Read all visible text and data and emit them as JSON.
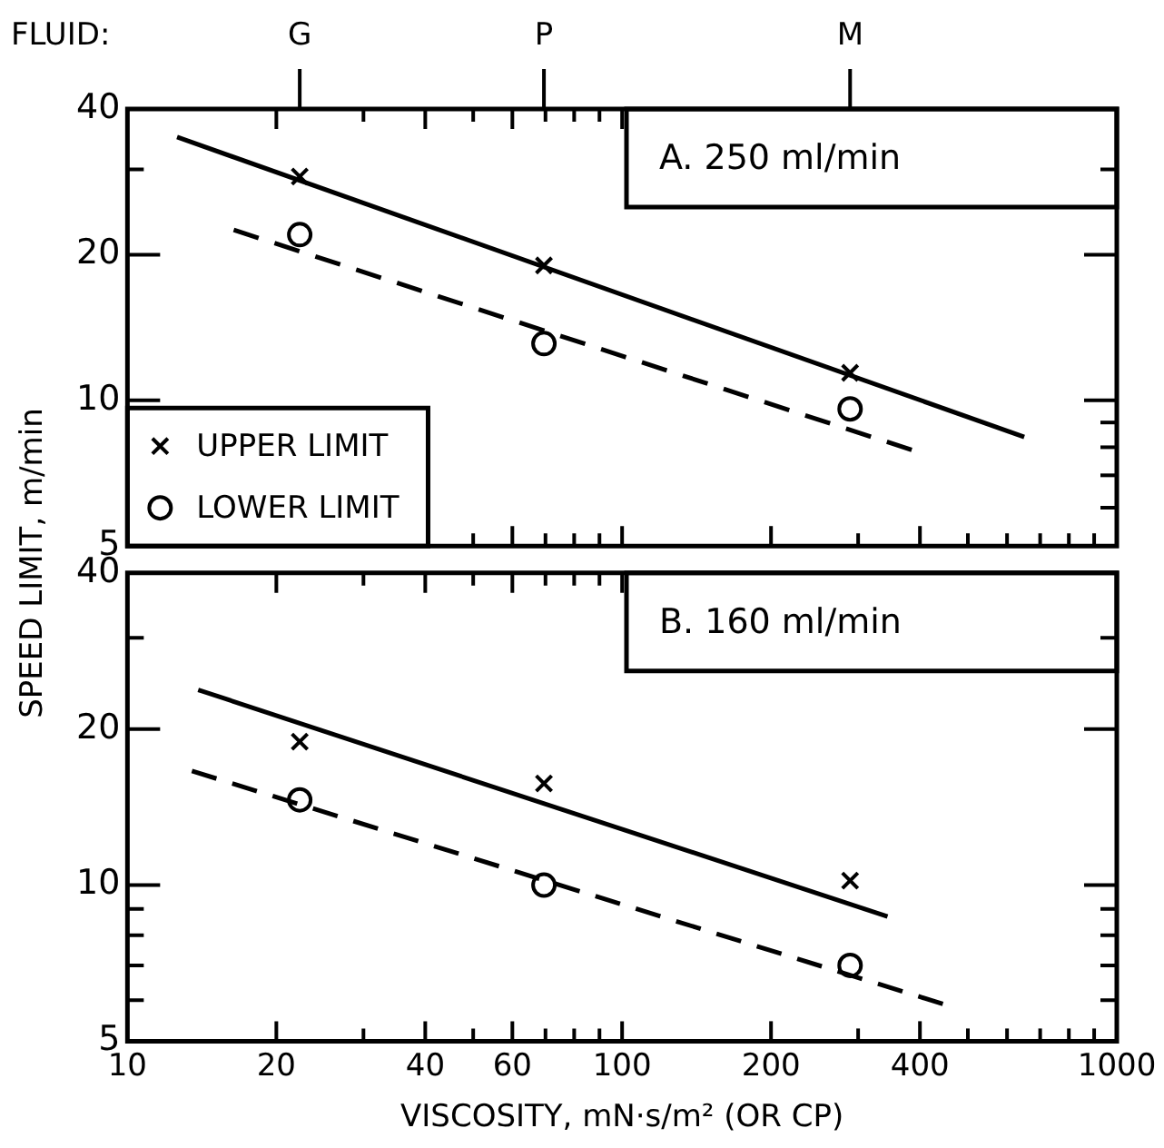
{
  "chart_data": [
    {
      "type": "scatter",
      "title": "A. 250 ml/min",
      "ylabel": "SPEED LIMIT, m/min",
      "log": "xy",
      "grid": false,
      "legend": "bottom left",
      "tick_labels": "y",
      "xlim": [
        10,
        1000
      ],
      "xticks": [
        10,
        20,
        {
          "value": 30,
          "label": null
        },
        40,
        {
          "value": 50,
          "label": null
        },
        60,
        {
          "value": 70,
          "label": null
        },
        {
          "value": 80,
          "label": null
        },
        {
          "value": 90,
          "label": null
        },
        100,
        200,
        {
          "value": 300,
          "label": null
        },
        400,
        {
          "value": 500,
          "label": null
        },
        {
          "value": 600,
          "label": null
        },
        {
          "value": 700,
          "label": null
        },
        {
          "value": 800,
          "label": null
        },
        {
          "value": 900,
          "label": null
        },
        1000
      ],
      "annotations": [
        "FLUID:",
        {
          "text": "G",
          "x": 22.3
        },
        {
          "text": "P",
          "x": 69.5
        },
        {
          "text": "M",
          "x": 289
        }
      ],
      "ylim": [
        5,
        40
      ],
      "yticks": [
        5,
        {
          "value": 6,
          "label": null
        },
        {
          "value": 7,
          "label": null
        },
        {
          "value": 8,
          "label": null
        },
        {
          "value": 9,
          "label": null
        },
        10,
        20,
        {
          "value": 30,
          "label": null
        },
        40
      ],
      "series": [
        {
          "name": "UPPER LIMIT",
          "type": "scatter",
          "marker": "cross",
          "color": "#000000",
          "x": [
            22.3,
            69.5,
            289
          ],
          "values": [
            29,
            19,
            11.4
          ]
        },
        {
          "name": "LOWER LIMIT",
          "type": "scatter",
          "marker": "circle",
          "color": "#000000",
          "x": [
            22.3,
            69.5,
            289
          ],
          "values": [
            22,
            13.1,
            9.6
          ]
        },
        {
          "type": "line",
          "marker": "none",
          "line_style": "solid",
          "color": "#000000",
          "x": [
            12.6,
            650
          ],
          "values": [
            35,
            8.4
          ]
        },
        {
          "type": "line",
          "marker": "none",
          "line_style": "dashed",
          "color": "#000000",
          "x": [
            16.4,
            385
          ],
          "values": [
            22.5,
            7.9
          ]
        }
      ]
    },
    {
      "type": "scatter",
      "title": "B. 160 ml/min",
      "xlabel": "VISCOSITY, mN·s/m² (OR CP)",
      "log": "xy",
      "grid": false,
      "xlim": [
        10,
        1000
      ],
      "xticks": [
        10,
        20,
        {
          "value": 30,
          "label": null
        },
        40,
        {
          "value": 50,
          "label": null
        },
        60,
        {
          "value": 70,
          "label": null
        },
        {
          "value": 80,
          "label": null
        },
        {
          "value": 90,
          "label": null
        },
        100,
        200,
        {
          "value": 300,
          "label": null
        },
        400,
        {
          "value": 500,
          "label": null
        },
        {
          "value": 600,
          "label": null
        },
        {
          "value": 700,
          "label": null
        },
        {
          "value": 800,
          "label": null
        },
        {
          "value": 900,
          "label": null
        },
        1000
      ],
      "ylim": [
        5,
        40
      ],
      "yticks": [
        5,
        {
          "value": 6,
          "label": null
        },
        {
          "value": 7,
          "label": null
        },
        {
          "value": 8,
          "label": null
        },
        {
          "value": 9,
          "label": null
        },
        10,
        20,
        {
          "value": 30,
          "label": null
        },
        40
      ],
      "series": [
        {
          "type": "scatter",
          "marker": "cross",
          "color": "#000000",
          "x": [
            22.3,
            69.5,
            289
          ],
          "values": [
            18.9,
            15.7,
            10.2
          ]
        },
        {
          "type": "scatter",
          "marker": "circle",
          "color": "#000000",
          "x": [
            22.3,
            69.5,
            289
          ],
          "values": [
            14.6,
            10,
            7
          ]
        },
        {
          "type": "line",
          "marker": "none",
          "line_style": "solid",
          "color": "#000000",
          "x": [
            13.9,
            344
          ],
          "values": [
            23.8,
            8.7
          ]
        },
        {
          "type": "line",
          "marker": "none",
          "line_style": "dashed",
          "color": "#000000",
          "x": [
            13.5,
            445
          ],
          "values": [
            16.6,
            5.9
          ]
        }
      ]
    }
  ]
}
